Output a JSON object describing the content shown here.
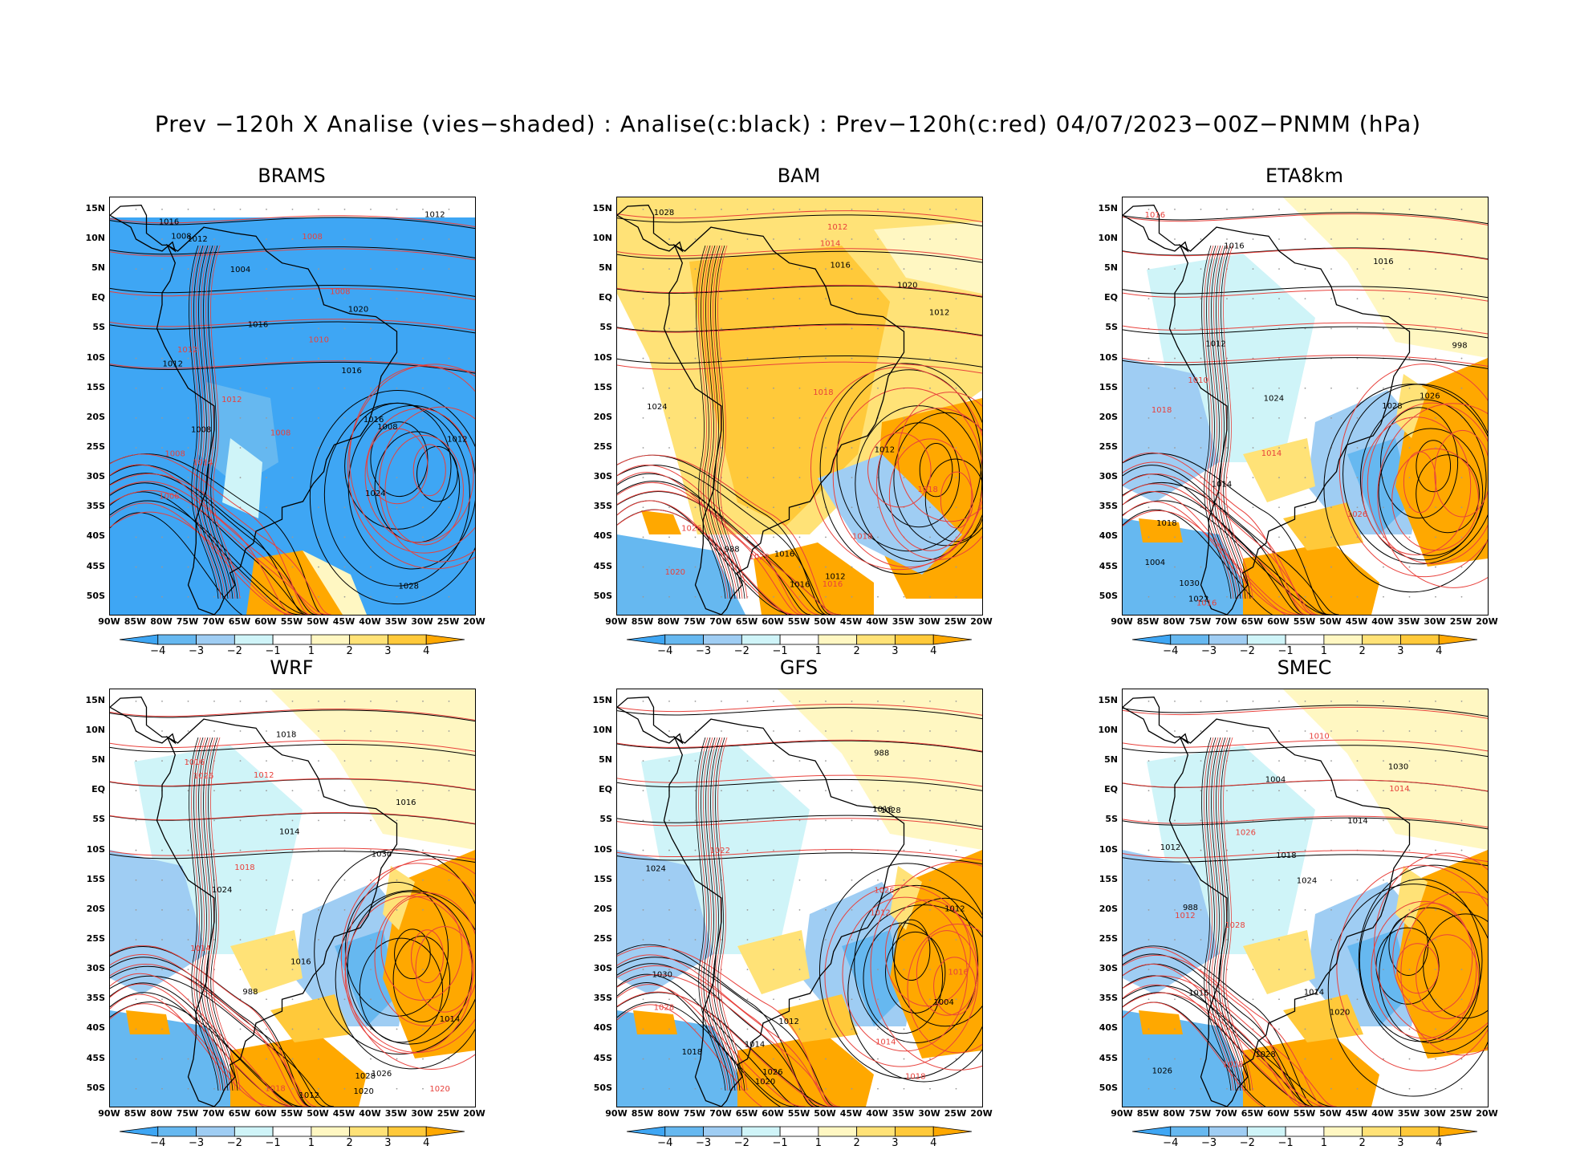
{
  "title": "Prev −120h X Analise (vies−shaded) : Analise(c:black) : Prev−120h(c:red) 04/07/2023−00Z−PNMM (hPa)",
  "lat_labels": [
    "15N",
    "10N",
    "5N",
    "EQ",
    "5S",
    "10S",
    "15S",
    "20S",
    "25S",
    "30S",
    "35S",
    "40S",
    "45S",
    "50S"
  ],
  "lon_labels": [
    "90W",
    "85W",
    "80W",
    "75W",
    "70W",
    "65W",
    "60W",
    "55W",
    "50W",
    "45W",
    "40W",
    "35W",
    "30W",
    "25W",
    "20W"
  ],
  "colorbar": {
    "labels": [
      "−4",
      "−3",
      "−2",
      "−1",
      "1",
      "2",
      "3",
      "4"
    ],
    "colors": [
      "#3ea6f4",
      "#66b8f0",
      "#9fcdf3",
      "#cff4f8",
      "#ffffff",
      "#fff7c2",
      "#ffe277",
      "#ffc93a",
      "#ffa800"
    ]
  },
  "panels": [
    {
      "name": "BRAMS",
      "bias": "cold",
      "labels_black": [
        "1008",
        "1016",
        "1012",
        "1012",
        "1016",
        "1012",
        "1016",
        "1024",
        "1028",
        "1020",
        "1016",
        "1008",
        "1012",
        "1008",
        "1004"
      ],
      "labels_red": [
        "1010",
        "1008",
        "1008",
        "1012",
        "1008",
        "1014",
        "1012",
        "1006",
        "1008"
      ]
    },
    {
      "name": "BAM",
      "bias": "warm",
      "labels_black": [
        "1012",
        "1016",
        "1012",
        "1016",
        "1020",
        "1024",
        "1028",
        "1012",
        "1016",
        "988"
      ],
      "labels_red": [
        "1018",
        "1016",
        "1012",
        "1014",
        "1018",
        "1022",
        "1026",
        "1020",
        "1018"
      ]
    },
    {
      "name": "ETA8km",
      "bias": "mixed",
      "labels_black": [
        "1018",
        "1012",
        "1016",
        "1014",
        "1016",
        "1022",
        "1024",
        "1028",
        "1030",
        "1026",
        "1004",
        "998"
      ],
      "labels_red": [
        "1016",
        "1014",
        "1018",
        "1010",
        "1016",
        "1026"
      ]
    },
    {
      "name": "WRF",
      "bias": "mixed",
      "labels_black": [
        "1016",
        "1014",
        "1012",
        "1016",
        "1020",
        "1024",
        "1028",
        "1030",
        "1026",
        "1018",
        "1014",
        "988"
      ],
      "labels_red": [
        "1018",
        "1016",
        "1012",
        "1020",
        "1026",
        "1014",
        "1018"
      ]
    },
    {
      "name": "GFS",
      "bias": "mixed",
      "labels_black": [
        "1012",
        "1016",
        "1014",
        "1012",
        "1018",
        "1020",
        "1024",
        "1028",
        "1026",
        "1030",
        "1004",
        "988"
      ],
      "labels_red": [
        "1018",
        "1016",
        "1014",
        "1012",
        "1022",
        "1026",
        "1028"
      ]
    },
    {
      "name": "SMEC",
      "bias": "mixed",
      "labels_black": [
        "1018",
        "1014",
        "1016",
        "1012",
        "1020",
        "1024",
        "1028",
        "1030",
        "1026",
        "1014",
        "1004",
        "988"
      ],
      "labels_red": [
        "1018",
        "1014",
        "1012",
        "1010",
        "1028",
        "1026"
      ]
    }
  ]
}
